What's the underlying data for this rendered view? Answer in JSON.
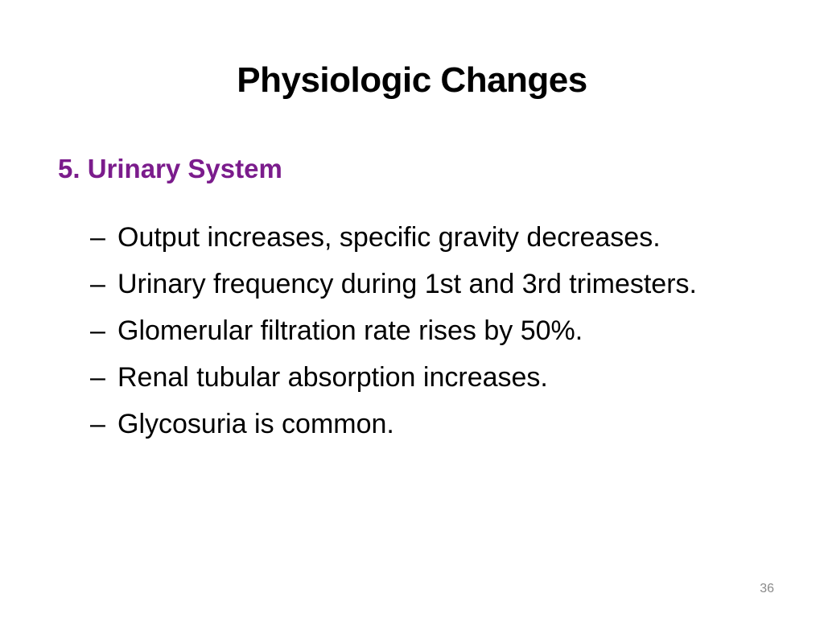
{
  "slide": {
    "title": "Physiologic Changes",
    "section_heading": "5. Urinary System",
    "bullet_marker": "–",
    "bullets": [
      "Output increases, specific gravity decreases.",
      "Urinary frequency during 1st and 3rd trimesters.",
      "Glomerular filtration rate rises by 50%.",
      "Renal tubular absorption increases.",
      "Glycosuria is common."
    ],
    "page_number": "36"
  },
  "colors": {
    "text": "#000000",
    "accent": "#7B1C8C",
    "page_number": "#8A8A8A",
    "background": "#FFFFFF"
  }
}
